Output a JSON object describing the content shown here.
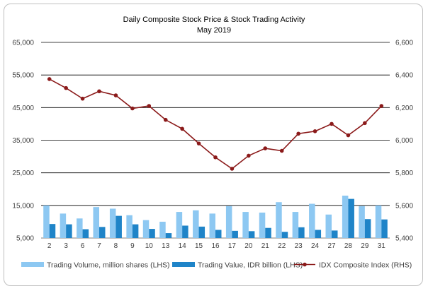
{
  "chart_data": {
    "type": "bar+line",
    "title": "Daily Composite Stock Price & Stock Trading Activity",
    "subtitle": "May 2019",
    "categories": [
      "2",
      "3",
      "6",
      "7",
      "8",
      "9",
      "10",
      "13",
      "14",
      "15",
      "16",
      "17",
      "20",
      "21",
      "22",
      "23",
      "24",
      "27",
      "28",
      "29",
      "31"
    ],
    "left_axis": {
      "ylim": [
        5000,
        65000
      ],
      "ticks": [
        "5,000",
        "15,000",
        "25,000",
        "35,000",
        "45,000",
        "55,000",
        "65,000"
      ]
    },
    "right_axis": {
      "ylim": [
        5400,
        6600
      ],
      "ticks": [
        "5,400",
        "5,600",
        "5,800",
        "6,000",
        "6,200",
        "6,400",
        "6,600"
      ]
    },
    "series": [
      {
        "name": "Trading Volume, million shares (LHS)",
        "type": "bar",
        "axis": "left",
        "color": "#8dc8f2",
        "values": [
          15000,
          12500,
          11000,
          14500,
          14000,
          12000,
          10500,
          10000,
          13000,
          13500,
          12500,
          14800,
          13000,
          12800,
          16000,
          13000,
          15500,
          12200,
          18000,
          14800,
          15000
        ]
      },
      {
        "name": "Trading Value, IDR billion (LHS)",
        "type": "bar",
        "axis": "left",
        "color": "#1f84c8",
        "values": [
          9300,
          9200,
          7700,
          8400,
          11800,
          9200,
          7800,
          6500,
          8800,
          8500,
          7500,
          7200,
          7100,
          8100,
          6900,
          8300,
          7500,
          7300,
          17000,
          10800,
          10700
        ]
      },
      {
        "name": "IDX Composite Index (RHS)",
        "type": "line",
        "axis": "right",
        "color": "#8b1a1a",
        "values": [
          6375,
          6320,
          6255,
          6300,
          6275,
          6195,
          6210,
          6125,
          6070,
          5980,
          5895,
          5825,
          5905,
          5950,
          5935,
          6040,
          6055,
          6100,
          6030,
          6105,
          6210
        ]
      }
    ],
    "grid": true,
    "legend_position": "bottom"
  }
}
